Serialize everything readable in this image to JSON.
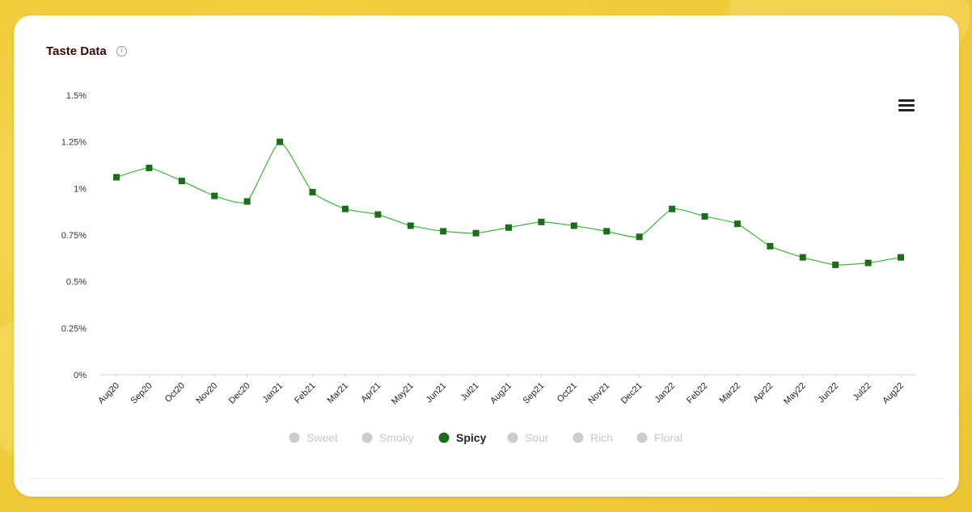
{
  "header": {
    "title": "Taste Data",
    "info_icon": "info-circle-icon"
  },
  "toolbar": {
    "menu_icon": "hamburger-menu-icon"
  },
  "colors": {
    "accent": "#1a6e1a",
    "line": "#33bb33",
    "marker": "#1a6e1a",
    "legend_inactive": "#cccccc",
    "legend_inactive_text": "#c8c8c8",
    "axis": "#ccd6eb"
  },
  "chart_data": {
    "type": "line",
    "title": "Taste Data",
    "xlabel": "",
    "ylabel": "",
    "ylim": [
      0,
      1.5
    ],
    "yticks": [
      "0%",
      "0.25%",
      "0.5%",
      "0.75%",
      "1%",
      "1.25%",
      "1.5%"
    ],
    "ytick_values": [
      0,
      0.25,
      0.5,
      0.75,
      1,
      1.25,
      1.5
    ],
    "grid": false,
    "legend_position": "bottom-center",
    "categories": [
      "Aug20",
      "Sep20",
      "Oct20",
      "Nov20",
      "Dec20",
      "Jan21",
      "Feb21",
      "Mar21",
      "Apr21",
      "May21",
      "Jun21",
      "Jul21",
      "Aug21",
      "Sep21",
      "Oct21",
      "Nov21",
      "Dec21",
      "Jan22",
      "Feb22",
      "Mar22",
      "Apr22",
      "May22",
      "Jun22",
      "Jul22",
      "Aug22"
    ],
    "series": [
      {
        "name": "Spicy",
        "visible": true,
        "values": [
          1.06,
          1.11,
          1.04,
          0.96,
          0.93,
          1.25,
          0.98,
          0.89,
          0.86,
          0.8,
          0.77,
          0.76,
          0.79,
          0.82,
          0.8,
          0.77,
          0.74,
          0.89,
          0.85,
          0.81,
          0.69,
          0.63,
          0.59,
          0.6,
          0.63
        ]
      }
    ],
    "legend": [
      {
        "name": "Sweet",
        "active": false
      },
      {
        "name": "Smoky",
        "active": false
      },
      {
        "name": "Spicy",
        "active": true
      },
      {
        "name": "Sour",
        "active": false
      },
      {
        "name": "Rich",
        "active": false
      },
      {
        "name": "Floral",
        "active": false
      }
    ]
  }
}
